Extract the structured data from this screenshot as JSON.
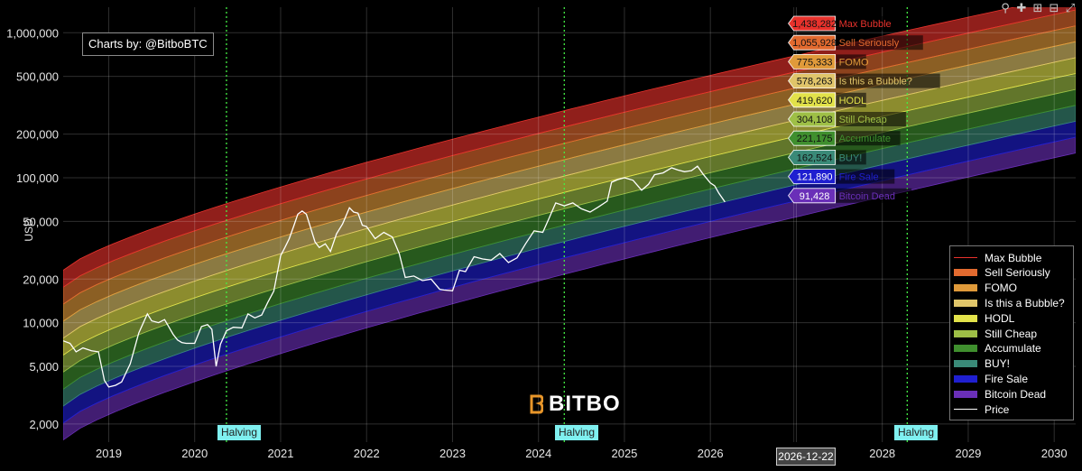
{
  "credit": "Charts by: @BitboBTC",
  "logo_text": "BITBO",
  "date_tag": "2026-12-22",
  "halving_label": "Halving",
  "toolbar": [
    "zoom-icon",
    "pan-icon",
    "zoom-in-icon",
    "zoom-out-icon",
    "autoscale-icon"
  ],
  "chart_data": {
    "type": "area",
    "ylabel": "USD",
    "yscale": "log",
    "ylim": [
      1500,
      1500000
    ],
    "xlim": [
      2018.47,
      2030.25
    ],
    "x_ticks": [
      2019,
      2020,
      2021,
      2022,
      2023,
      2024,
      2025,
      2026,
      2027,
      2028,
      2029,
      2030
    ],
    "y_ticks": [
      {
        "v": 2000,
        "label": "2,000"
      },
      {
        "v": 5000,
        "label": "5,000"
      },
      {
        "v": 10000,
        "label": "10,000"
      },
      {
        "v": 20000,
        "label": "20,000"
      },
      {
        "v": 50000,
        "label": "50,000"
      },
      {
        "v": 100000,
        "label": "100,000"
      },
      {
        "v": 200000,
        "label": "200,000"
      },
      {
        "v": 500000,
        "label": "500,000"
      },
      {
        "v": 1000000,
        "label": "1,000,000"
      }
    ],
    "halvings": [
      2020.37,
      2024.3,
      2028.29
    ],
    "hover_date": "2026-12-22",
    "hover_x": 2026.97,
    "bands": [
      {
        "name": "Max Bubble",
        "color": "#e8322c",
        "hover_value": "1,438,282"
      },
      {
        "name": "Sell Seriously",
        "color": "#e26a2f",
        "hover_value": "1,055,928"
      },
      {
        "name": "FOMO",
        "color": "#e09a3a",
        "hover_value": "775,333"
      },
      {
        "name": "Is this a Bubble?",
        "color": "#e0c56a",
        "hover_value": "578,263"
      },
      {
        "name": "HODL",
        "color": "#e2e24a",
        "hover_value": "419,620"
      },
      {
        "name": "Still Cheap",
        "color": "#9ebf46",
        "hover_value": "304,108"
      },
      {
        "name": "Accumulate",
        "color": "#3f8f2e",
        "hover_value": "221,175"
      },
      {
        "name": "BUY!",
        "color": "#3a8a78",
        "hover_value": "162,524"
      },
      {
        "name": "Fire Sale",
        "color": "#1f1fd0",
        "hover_value": "121,890"
      },
      {
        "name": "Bitcoin Dead",
        "color": "#6a2fb8",
        "hover_value": "91,428"
      }
    ],
    "band_boundaries_at": {
      "x": [
        2018.47,
        2030.25
      ],
      "top_left": 23000,
      "bottom_left": 1550,
      "top_right_max_bubble": 1850000,
      "bottom_right_bitcoin_dead": 148000
    },
    "price_series": {
      "name": "Price",
      "color": "#ffffff",
      "x": [
        2018.47,
        2018.55,
        2018.62,
        2018.7,
        2018.8,
        2018.88,
        2018.95,
        2019.0,
        2019.08,
        2019.15,
        2019.25,
        2019.35,
        2019.45,
        2019.5,
        2019.58,
        2019.65,
        2019.75,
        2019.8,
        2019.85,
        2019.9,
        2020.0,
        2020.08,
        2020.15,
        2020.2,
        2020.25,
        2020.3,
        2020.37,
        2020.45,
        2020.55,
        2020.62,
        2020.7,
        2020.78,
        2020.85,
        2020.92,
        2021.0,
        2021.05,
        2021.1,
        2021.15,
        2021.2,
        2021.25,
        2021.3,
        2021.35,
        2021.4,
        2021.45,
        2021.52,
        2021.58,
        2021.65,
        2021.72,
        2021.8,
        2021.85,
        2021.9,
        2021.95,
        2022.0,
        2022.1,
        2022.2,
        2022.3,
        2022.38,
        2022.45,
        2022.55,
        2022.65,
        2022.75,
        2022.85,
        2022.9,
        2023.0,
        2023.08,
        2023.15,
        2023.25,
        2023.35,
        2023.45,
        2023.55,
        2023.65,
        2023.75,
        2023.85,
        2023.95,
        2024.05,
        2024.12,
        2024.2,
        2024.3,
        2024.4,
        2024.5,
        2024.6,
        2024.7,
        2024.8,
        2024.85,
        2024.92,
        2025.0,
        2025.1,
        2025.2,
        2025.28,
        2025.35,
        2025.45,
        2025.55,
        2025.62,
        2025.7,
        2025.78,
        2025.85,
        2025.92,
        2026.0,
        2026.05,
        2026.1,
        2026.17
      ],
      "y": [
        7500,
        7200,
        6300,
        6700,
        6400,
        6300,
        4000,
        3600,
        3700,
        3900,
        5200,
        8500,
        11500,
        10300,
        10000,
        10500,
        8300,
        7600,
        7300,
        7200,
        7200,
        9400,
        9700,
        9000,
        5000,
        7100,
        8800,
        9300,
        9200,
        11500,
        10800,
        11300,
        13800,
        16500,
        29000,
        33000,
        38000,
        46000,
        56000,
        59000,
        56000,
        45000,
        36000,
        33000,
        35000,
        31000,
        41000,
        48000,
        62000,
        58000,
        57000,
        47000,
        46000,
        38000,
        42000,
        39000,
        30000,
        20500,
        21000,
        19500,
        20000,
        17000,
        16800,
        16600,
        23000,
        22500,
        28500,
        27500,
        27000,
        30000,
        26000,
        28000,
        35000,
        43000,
        42000,
        52000,
        67000,
        64000,
        67000,
        61000,
        58000,
        63000,
        69000,
        93000,
        97000,
        100000,
        96000,
        82000,
        90000,
        105000,
        108000,
        117000,
        113000,
        110000,
        112000,
        120000,
        105000,
        92000,
        88000,
        78000,
        68000
      ]
    }
  }
}
